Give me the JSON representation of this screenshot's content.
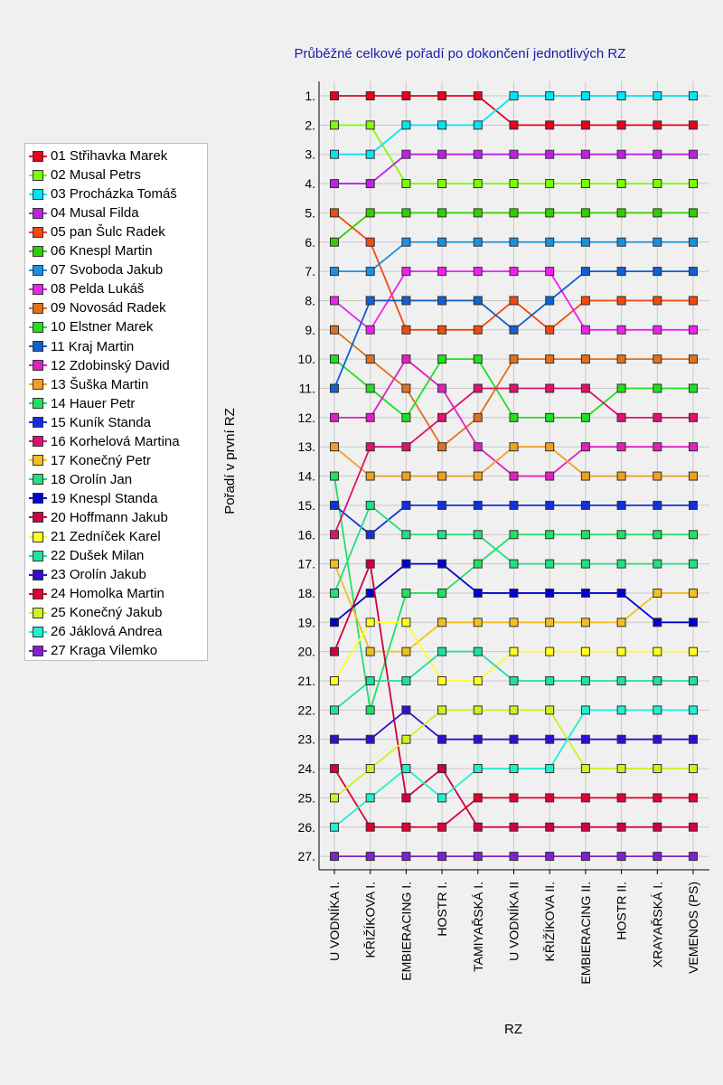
{
  "chart_data": {
    "type": "line",
    "title": "Průběžné celkové pořadí po dokončení jednotlivých RZ",
    "xlabel": "RZ",
    "ylabel": "Pořadí v první RZ",
    "categories": [
      "U VODNÍKA I.",
      "KŘIŽÍKOVA I.",
      "EMBIERACING I.",
      "HOSTR I.",
      "TAMIYAŘSKÁ I.",
      "U VODNÍKA II",
      "KŘIŽÍKOVA II.",
      "EMBIERACING II.",
      "HOSTR II.",
      "XRAYAŘSKÁ I.",
      "VEMENOS (PS)"
    ],
    "y_ticks": [
      "1.",
      "2.",
      "3.",
      "4.",
      "5.",
      "6.",
      "7.",
      "8.",
      "9.",
      "10.",
      "11.",
      "12.",
      "13.",
      "14.",
      "15.",
      "16.",
      "17.",
      "18.",
      "19.",
      "20.",
      "21.",
      "22.",
      "23.",
      "24.",
      "25.",
      "26.",
      "27."
    ],
    "ylim": [
      1,
      27
    ],
    "y_inverted": true,
    "grid": true,
    "legend_position": "left",
    "series": [
      {
        "name": "01 Střihavka Marek",
        "color": "#e8001c",
        "values": [
          1,
          1,
          1,
          1,
          1,
          2,
          2,
          2,
          2,
          2,
          2
        ]
      },
      {
        "name": "02 Musal Petrs",
        "color": "#7dff00",
        "values": [
          2,
          2,
          4,
          4,
          4,
          4,
          4,
          4,
          4,
          4,
          4
        ]
      },
      {
        "name": "03 Procházka Tomáš",
        "color": "#00e5f5",
        "values": [
          3,
          3,
          2,
          2,
          2,
          1,
          1,
          1,
          1,
          1,
          1
        ]
      },
      {
        "name": "04 Musal Filda",
        "color": "#c020e6",
        "values": [
          4,
          4,
          3,
          3,
          3,
          3,
          3,
          3,
          3,
          3,
          3
        ]
      },
      {
        "name": "05 pan Šulc Radek",
        "color": "#f04a10",
        "values": [
          5,
          6,
          9,
          9,
          9,
          8,
          9,
          8,
          8,
          8,
          8
        ]
      },
      {
        "name": "06 Knespl Martin",
        "color": "#30d000",
        "values": [
          6,
          5,
          5,
          5,
          5,
          5,
          5,
          5,
          5,
          5,
          5
        ]
      },
      {
        "name": "07 Svoboda Jakub",
        "color": "#1c90e0",
        "values": [
          7,
          7,
          6,
          6,
          6,
          6,
          6,
          6,
          6,
          6,
          6
        ]
      },
      {
        "name": "08 Pelda Lukáš",
        "color": "#f020f0",
        "values": [
          8,
          9,
          7,
          7,
          7,
          7,
          7,
          9,
          9,
          9,
          9
        ]
      },
      {
        "name": "09 Novosád Radek",
        "color": "#e07020",
        "values": [
          9,
          10,
          11,
          13,
          12,
          10,
          10,
          10,
          10,
          10,
          10
        ]
      },
      {
        "name": "10 Elstner Marek",
        "color": "#20e020",
        "values": [
          10,
          11,
          12,
          10,
          10,
          12,
          12,
          12,
          11,
          11,
          11
        ]
      },
      {
        "name": "11 Kraj Martin",
        "color": "#1060d0",
        "values": [
          11,
          8,
          8,
          8,
          8,
          9,
          8,
          7,
          7,
          7,
          7
        ]
      },
      {
        "name": "12 Zdobinský David",
        "color": "#e020c0",
        "values": [
          12,
          12,
          10,
          11,
          13,
          14,
          14,
          13,
          13,
          13,
          13
        ]
      },
      {
        "name": "13 Šuška Martin",
        "color": "#f0a020",
        "values": [
          13,
          14,
          14,
          14,
          14,
          13,
          13,
          14,
          14,
          14,
          14
        ]
      },
      {
        "name": "14 Hauer Petr",
        "color": "#20e060",
        "values": [
          14,
          22,
          18,
          18,
          17,
          16,
          16,
          16,
          16,
          16,
          16
        ]
      },
      {
        "name": "15 Kuník Standa",
        "color": "#1030e0",
        "values": [
          15,
          16,
          15,
          15,
          15,
          15,
          15,
          15,
          15,
          15,
          15
        ]
      },
      {
        "name": "16 Korhelová Martina",
        "color": "#e01070",
        "values": [
          16,
          13,
          13,
          12,
          11,
          11,
          11,
          11,
          12,
          12,
          12
        ]
      },
      {
        "name": "17 Konečný Petr",
        "color": "#f0c020",
        "values": [
          17,
          20,
          20,
          19,
          19,
          19,
          19,
          19,
          19,
          18,
          18
        ]
      },
      {
        "name": "18 Orolín Jan",
        "color": "#20e080",
        "values": [
          18,
          15,
          16,
          16,
          16,
          17,
          17,
          17,
          17,
          17,
          17
        ]
      },
      {
        "name": "19 Knespl Standa",
        "color": "#0000d0",
        "values": [
          19,
          18,
          17,
          17,
          18,
          18,
          18,
          18,
          18,
          19,
          19
        ]
      },
      {
        "name": "20 Hoffmann Jakub",
        "color": "#d00040",
        "values": [
          20,
          17,
          25,
          24,
          26,
          26,
          26,
          26,
          26,
          26,
          26
        ]
      },
      {
        "name": "21 Zedníček Karel",
        "color": "#ffff20",
        "values": [
          21,
          19,
          19,
          21,
          21,
          20,
          20,
          20,
          20,
          20,
          20
        ]
      },
      {
        "name": "22 Dušek Milan",
        "color": "#20e0a0",
        "values": [
          22,
          21,
          21,
          20,
          20,
          21,
          21,
          21,
          21,
          21,
          21
        ]
      },
      {
        "name": "23 Orolín Jakub",
        "color": "#3010d0",
        "values": [
          23,
          23,
          22,
          23,
          23,
          23,
          23,
          23,
          23,
          23,
          23
        ]
      },
      {
        "name": "24 Homolka Martin",
        "color": "#e00030",
        "values": [
          24,
          26,
          26,
          26,
          25,
          25,
          25,
          25,
          25,
          25,
          25
        ]
      },
      {
        "name": "25 Konečný Jakub",
        "color": "#d0f020",
        "values": [
          25,
          24,
          23,
          22,
          22,
          22,
          22,
          24,
          24,
          24,
          24
        ]
      },
      {
        "name": "26 Jáklová Andrea",
        "color": "#20f0d0",
        "values": [
          26,
          25,
          24,
          25,
          24,
          24,
          24,
          22,
          22,
          22,
          22
        ]
      },
      {
        "name": "27 Kraga Vilemko",
        "color": "#8020d0",
        "values": [
          27,
          27,
          27,
          27,
          27,
          27,
          27,
          27,
          27,
          27,
          27
        ]
      }
    ]
  }
}
